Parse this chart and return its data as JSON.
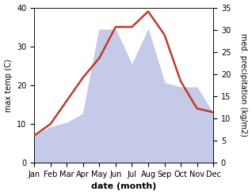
{
  "months": [
    "Jan",
    "Feb",
    "Mar",
    "Apr",
    "May",
    "Jun",
    "Jul",
    "Aug",
    "Sep",
    "Oct",
    "Nov",
    "Dec"
  ],
  "temp": [
    7,
    10,
    16,
    22,
    27,
    35,
    35,
    39,
    33,
    21,
    14,
    13
  ],
  "precip": [
    6,
    8,
    9,
    11,
    30,
    30,
    22,
    30,
    18,
    17,
    17,
    11
  ],
  "temp_color": "#c0392b",
  "precip_fill_color": "#c5cae9",
  "precip_edge_color": "#aab4d8",
  "ylabel_left": "max temp (C)",
  "ylabel_right": "med. precipitation (kg/m2)",
  "xlabel": "date (month)",
  "ylim_left": [
    0,
    40
  ],
  "ylim_right": [
    0,
    35
  ],
  "yticks_left": [
    0,
    10,
    20,
    30,
    40
  ],
  "yticks_right": [
    0,
    5,
    10,
    15,
    20,
    25,
    30,
    35
  ],
  "bg_color": "#ffffff",
  "temp_linewidth": 1.8,
  "ylabel_left_fontsize": 7,
  "ylabel_right_fontsize": 7,
  "xlabel_fontsize": 8,
  "tick_fontsize": 7
}
